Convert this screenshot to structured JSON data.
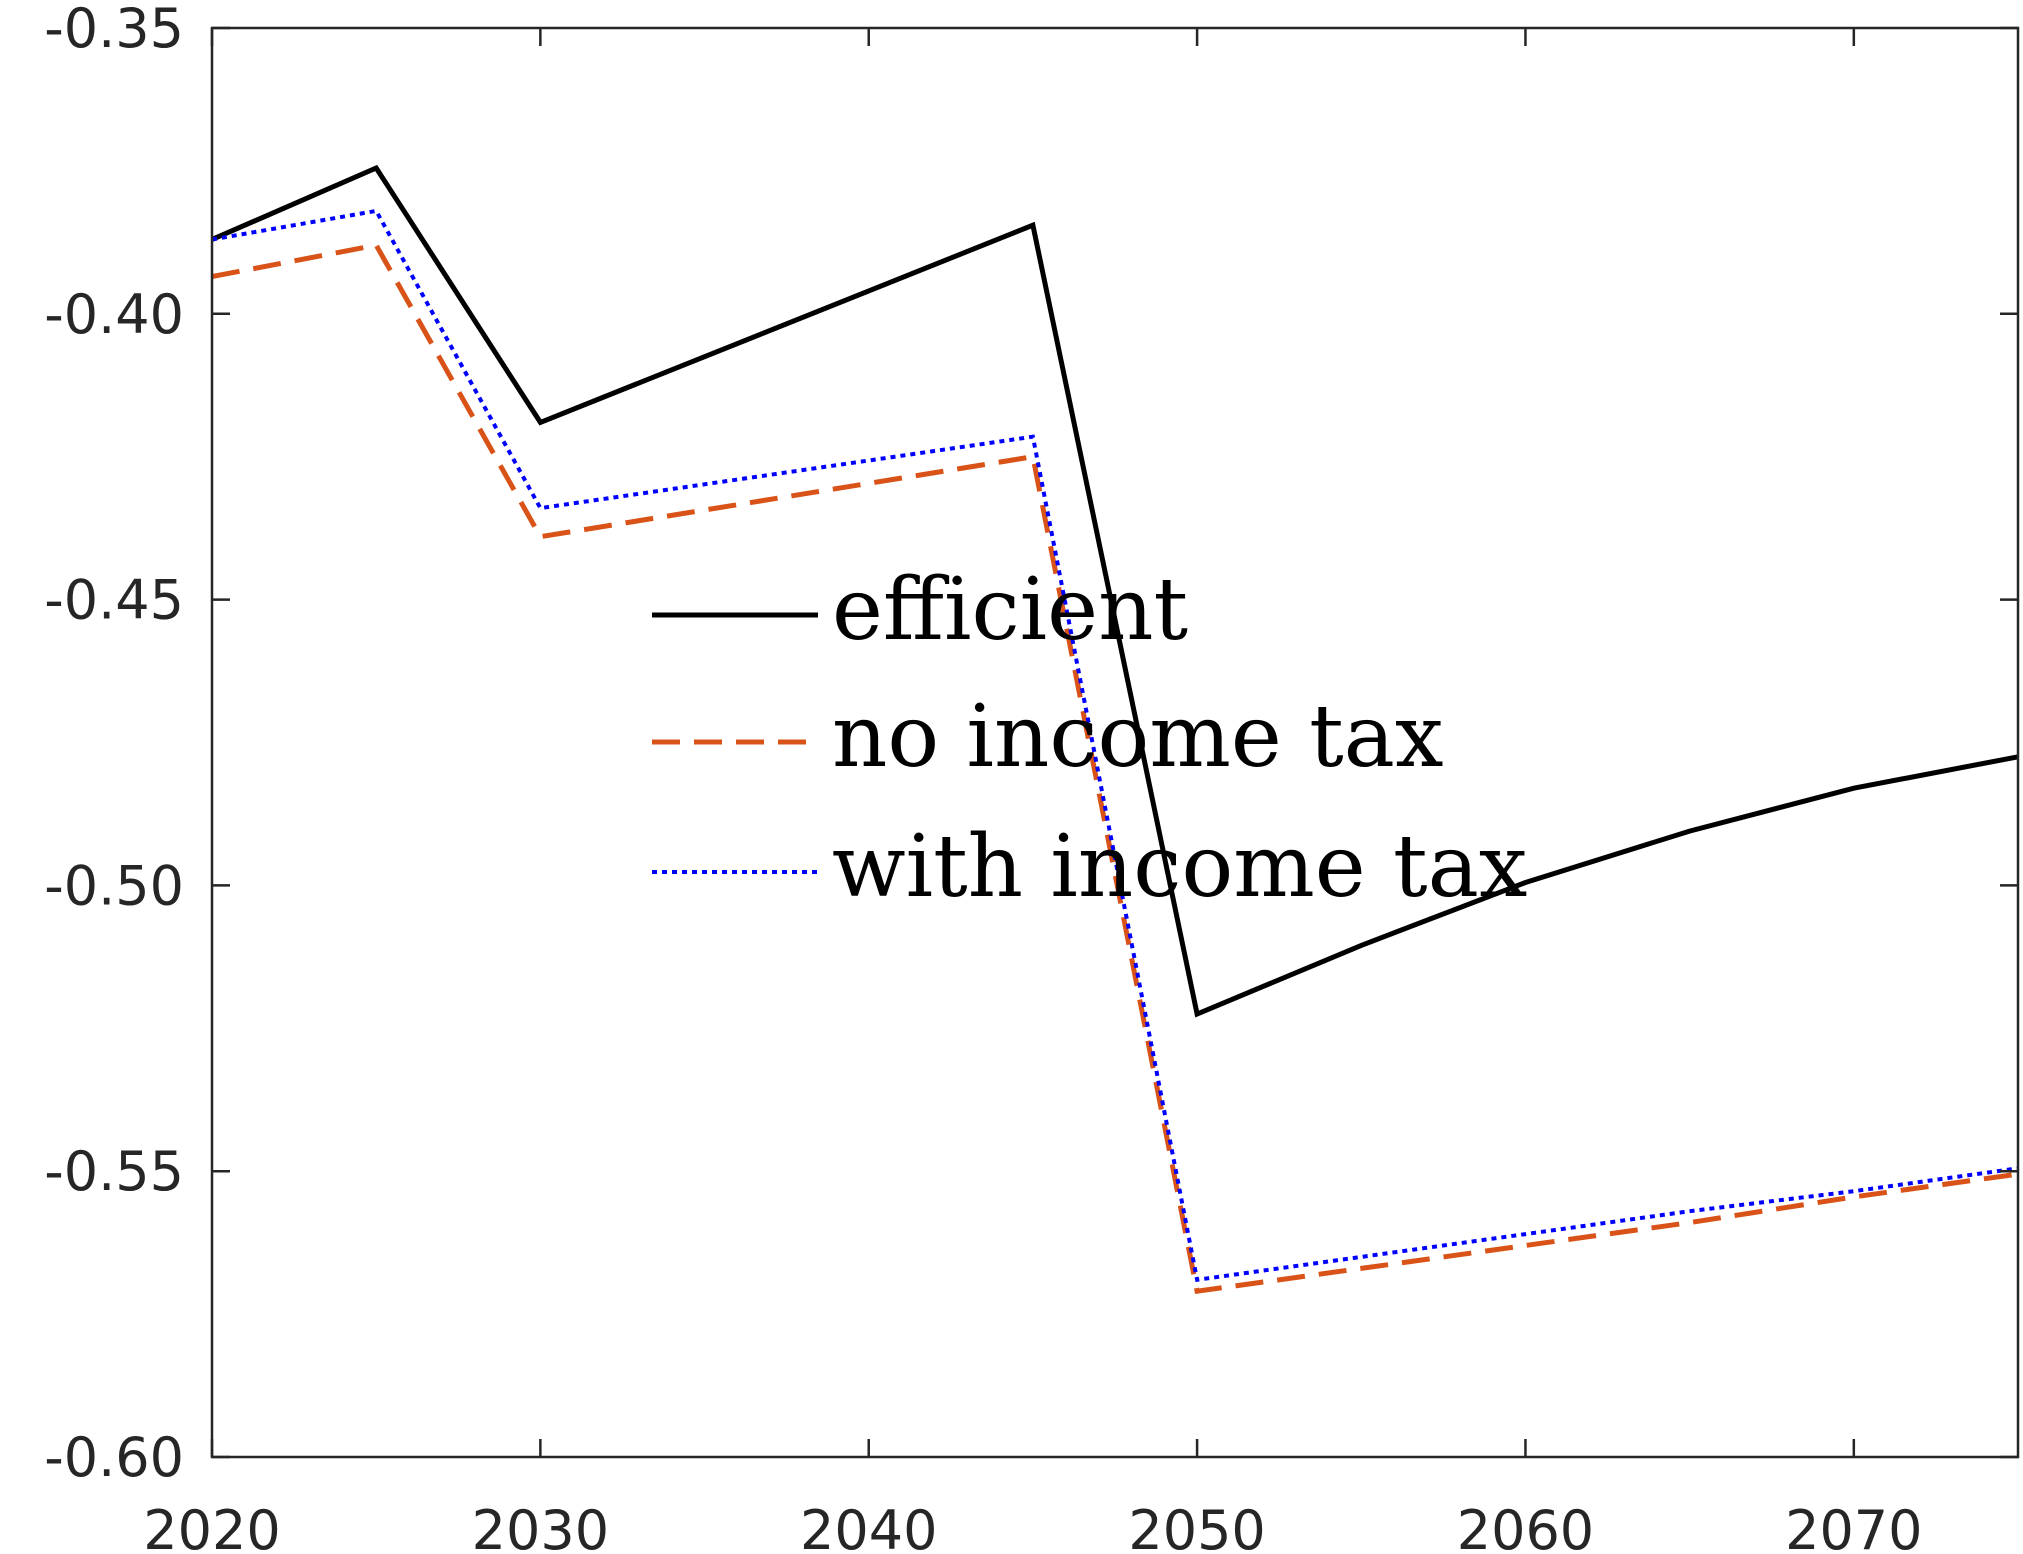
{
  "chart_data": {
    "type": "line",
    "title": "",
    "xlabel": "",
    "ylabel": "",
    "xlim": [
      2020,
      2075
    ],
    "ylim": [
      -0.6,
      -0.35
    ],
    "xticks": [
      2020,
      2030,
      2040,
      2050,
      2060,
      2070
    ],
    "xtick_labels": [
      "2020",
      "2030",
      "2040",
      "2050",
      "2060",
      "2070"
    ],
    "yticks": [
      -0.6,
      -0.55,
      -0.5,
      -0.45,
      -0.4,
      -0.35
    ],
    "ytick_labels": [
      "-0.60",
      "-0.55",
      "-0.50",
      "-0.45",
      "-0.40",
      "-0.35"
    ],
    "grid": false,
    "box": true,
    "legend": {
      "placement": "center",
      "entries": [
        "efficient",
        "no income tax",
        "with income tax"
      ]
    },
    "x": [
      2020,
      2025,
      2030,
      2045,
      2050,
      2055,
      2060,
      2065,
      2070,
      2075
    ],
    "series": [
      {
        "name": "efficient",
        "color": "#000000",
        "style": "solid",
        "values": [
          -0.387,
          -0.3745,
          -0.419,
          -0.3845,
          -0.5225,
          -0.5105,
          -0.4995,
          -0.4905,
          -0.483,
          -0.4775
        ]
      },
      {
        "name": "no income tax",
        "color": "#D95319",
        "style": "dashed",
        "values": [
          -0.3935,
          -0.388,
          -0.439,
          -0.425,
          -0.571,
          -0.567,
          -0.563,
          -0.559,
          -0.5545,
          -0.5505
        ]
      },
      {
        "name": "with income tax",
        "color": "#0000FF",
        "style": "dotted",
        "values": [
          -0.387,
          -0.382,
          -0.434,
          -0.4215,
          -0.569,
          -0.565,
          -0.561,
          -0.557,
          -0.5535,
          -0.5495
        ]
      }
    ]
  }
}
